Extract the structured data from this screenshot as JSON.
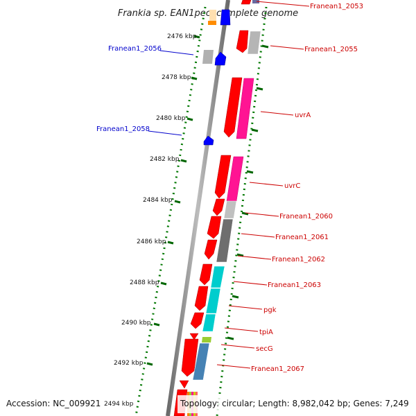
{
  "title": "Frankia sp. EAN1pec, complete genome",
  "footer": {
    "accession": "Accession: NC_009921",
    "topology": "Topology: circular; Length: 8,982,042 bp; Genes: 7,249"
  },
  "kbp_ticks": [
    "2476 kbp",
    "2478 kbp",
    "2480 kbp",
    "2482 kbp",
    "2484 kbp",
    "2486 kbp",
    "2488 kbp",
    "2490 kbp",
    "2492 kbp",
    "2494 kbp"
  ],
  "gene_labels": [
    {
      "text": "Franean1_2053",
      "color": "#cc0000"
    },
    {
      "text": "Franean1_2055",
      "color": "#cc0000"
    },
    {
      "text": "uvrA",
      "color": "#cc0000"
    },
    {
      "text": "uvrC",
      "color": "#cc0000"
    },
    {
      "text": "Franean1_2060",
      "color": "#cc0000"
    },
    {
      "text": "Franean1_2061",
      "color": "#cc0000"
    },
    {
      "text": "Franean1_2062",
      "color": "#cc0000"
    },
    {
      "text": "Franean1_2063",
      "color": "#cc0000"
    },
    {
      "text": "pgk",
      "color": "#cc0000"
    },
    {
      "text": "tpiA",
      "color": "#cc0000"
    },
    {
      "text": "secG",
      "color": "#cc0000"
    },
    {
      "text": "Franean1_2067",
      "color": "#cc0000"
    },
    {
      "text": "Franean1_2056",
      "color": "#0000cc"
    },
    {
      "text": "Franean1_2058",
      "color": "#0000cc"
    }
  ],
  "colors": {
    "forward_gene": "#ff0000",
    "reverse_gene": "#0000ff",
    "uvr_category": "#ff1493",
    "glycolysis_category": "#00cccc",
    "membrane_category": "#4682b4",
    "unknown_category": "#b0b0b0",
    "general_category": "#6e6e6e",
    "tick_green": "#006600"
  }
}
